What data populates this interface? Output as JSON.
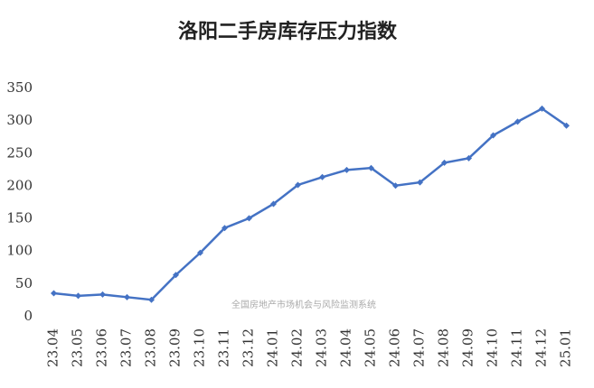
{
  "chart_data": {
    "type": "line",
    "title": "洛阳二手房库存压力指数",
    "annotation": "全国房地产市场机会与风险监测系统",
    "categories": [
      "23.04",
      "23.05",
      "23.06",
      "23.07",
      "23.08",
      "23.09",
      "23.10",
      "23.11",
      "23.12",
      "24.01",
      "24.02",
      "24.03",
      "24.04",
      "24.05",
      "24.06",
      "24.07",
      "24.08",
      "24.09",
      "24.10",
      "24.11",
      "24.12",
      "25.01"
    ],
    "series": [
      {
        "name": "洛阳二手房库存压力指数",
        "color": "#4472c4",
        "values": [
          36,
          32,
          34,
          30,
          26,
          64,
          98,
          136,
          151,
          173,
          202,
          214,
          225,
          228,
          201,
          206,
          236,
          243,
          278,
          299,
          319,
          293
        ]
      }
    ],
    "ylim": [
      0,
      350
    ],
    "yticks": [
      0,
      50,
      100,
      150,
      200,
      250,
      300,
      350
    ],
    "grid": false
  }
}
